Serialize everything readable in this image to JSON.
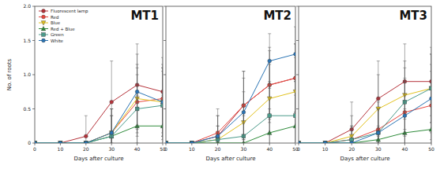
{
  "chart_data": [
    {
      "type": "line",
      "title": "MT1",
      "y_label": "No. of roots",
      "x_label": "Days after culture",
      "x": [
        0,
        10,
        20,
        30,
        40,
        50
      ],
      "xlim": [
        0,
        50
      ],
      "xticks": [
        0,
        10,
        20,
        30,
        40,
        50
      ],
      "ylim": [
        0,
        2
      ],
      "yticks": [
        0,
        {
          "value": 0.5,
          "label": "0.5"
        },
        {
          "value": 1,
          "label": "1.0"
        },
        {
          "value": 1.5,
          "label": "1.5"
        },
        {
          "value": 2,
          "label": "2.0"
        }
      ],
      "legend": "upper left",
      "series": [
        {
          "name": "Fluorescent lamp",
          "color": "#b5323a",
          "marker": "circle",
          "values": [
            0,
            0,
            0.1,
            0.6,
            0.85,
            0.75
          ],
          "errors": [
            0,
            0,
            0.3,
            0.6,
            0.6,
            0.5
          ]
        },
        {
          "name": "Red",
          "color": "#e8473f",
          "marker": "circle",
          "values": [
            0,
            0,
            0,
            0.15,
            0.6,
            0.65
          ],
          "errors": [
            0,
            0,
            0,
            0.35,
            0.5,
            0.5
          ]
        },
        {
          "name": "Blue",
          "color": "#e2c21e",
          "marker": "triangle-down",
          "values": [
            0,
            0,
            0,
            0.15,
            0.65,
            0.6
          ],
          "errors": [
            0,
            0,
            0,
            0.35,
            0.5,
            0.5
          ]
        },
        {
          "name": "Red + Blue",
          "color": "#2e8b3a",
          "marker": "triangle-up",
          "values": [
            0,
            0,
            0,
            0.1,
            0.25,
            0.25
          ],
          "errors": [
            0,
            0,
            0,
            0.3,
            0.45,
            0.45
          ]
        },
        {
          "name": "Green",
          "color": "#4a9a8a",
          "marker": "square",
          "values": [
            0,
            0,
            0,
            0.1,
            0.5,
            0.55
          ],
          "errors": [
            0,
            0,
            0,
            0.3,
            0.5,
            0.5
          ]
        },
        {
          "name": "White",
          "color": "#2a74b4",
          "marker": "circle",
          "values": [
            0,
            0,
            0,
            0.15,
            0.75,
            0.6
          ],
          "errors": [
            0,
            0,
            0,
            0.35,
            0.55,
            0.5
          ]
        }
      ]
    },
    {
      "type": "line",
      "title": "MT2",
      "x_label": "Days after culture",
      "x": [
        0,
        10,
        20,
        30,
        40,
        50
      ],
      "xlim": [
        0,
        50
      ],
      "xticks": [
        0,
        10,
        20,
        30,
        40,
        50
      ],
      "ylim": [
        0,
        2
      ],
      "yticks": [
        0,
        0.5,
        1,
        1.5,
        2
      ],
      "tick_labels": "x",
      "series": [
        {
          "color": "#b5323a",
          "marker": "circle",
          "values": [
            0,
            0,
            0.1,
            0.55,
            0.85,
            0.95
          ],
          "errors": [
            0,
            0,
            0.3,
            0.5,
            0.55,
            0.5
          ]
        },
        {
          "color": "#e8473f",
          "marker": "circle",
          "values": [
            0,
            0,
            0.15,
            0.55,
            0.85,
            0.95
          ],
          "errors": [
            0,
            0,
            0.35,
            0.5,
            0.5,
            0.5
          ]
        },
        {
          "color": "#e2c21e",
          "marker": "triangle-down",
          "values": [
            0,
            0,
            0.05,
            0.3,
            0.65,
            0.75
          ],
          "errors": [
            0,
            0,
            0.2,
            0.45,
            0.5,
            0.5
          ]
        },
        {
          "color": "#2e8b3a",
          "marker": "triangle-up",
          "values": [
            0,
            0,
            0,
            0,
            0.15,
            0.25
          ],
          "errors": [
            0,
            0,
            0,
            0,
            0.35,
            0.45
          ]
        },
        {
          "color": "#4a9a8a",
          "marker": "square",
          "values": [
            0,
            0,
            0.05,
            0.1,
            0.4,
            0.4
          ],
          "errors": [
            0,
            0,
            0.2,
            0.3,
            0.5,
            0.5
          ]
        },
        {
          "color": "#2a74b4",
          "marker": "circle",
          "values": [
            0,
            0,
            0.1,
            0.45,
            1.2,
            1.3
          ],
          "errors": [
            0,
            0,
            0.3,
            0.5,
            0.4,
            0.4
          ]
        }
      ]
    },
    {
      "type": "line",
      "title": "MT3",
      "x_label": "Days after culture",
      "x": [
        0,
        10,
        20,
        30,
        40,
        50
      ],
      "xlim": [
        0,
        50
      ],
      "xticks": [
        0,
        10,
        20,
        30,
        40,
        50
      ],
      "ylim": [
        0,
        2
      ],
      "yticks": [
        0,
        0.5,
        1,
        1.5,
        2
      ],
      "tick_labels": "x",
      "series": [
        {
          "color": "#b5323a",
          "marker": "circle",
          "values": [
            0,
            0,
            0.2,
            0.65,
            0.9,
            0.9
          ],
          "errors": [
            0,
            0,
            0.4,
            0.55,
            0.55,
            0.5
          ]
        },
        {
          "color": "#e8473f",
          "marker": "circle",
          "values": [
            0,
            0,
            0.05,
            0.2,
            0.45,
            0.55
          ],
          "errors": [
            0,
            0,
            0.2,
            0.4,
            0.5,
            0.5
          ]
        },
        {
          "color": "#e2c21e",
          "marker": "triangle-down",
          "values": [
            0,
            0,
            0.1,
            0.5,
            0.7,
            0.8
          ],
          "errors": [
            0,
            0,
            0.3,
            0.5,
            0.5,
            0.5
          ]
        },
        {
          "color": "#2e8b3a",
          "marker": "triangle-up",
          "values": [
            0,
            0,
            0,
            0.05,
            0.15,
            0.2
          ],
          "errors": [
            0,
            0,
            0,
            0.2,
            0.35,
            0.4
          ]
        },
        {
          "color": "#4a9a8a",
          "marker": "square",
          "values": [
            0,
            0,
            0.05,
            0.15,
            0.6,
            0.8
          ],
          "errors": [
            0,
            0,
            0.2,
            0.35,
            0.5,
            0.5
          ]
        },
        {
          "color": "#2a74b4",
          "marker": "circle",
          "values": [
            0,
            0,
            0,
            0.15,
            0.4,
            0.65
          ],
          "errors": [
            0,
            0,
            0,
            0.35,
            0.5,
            0.5
          ]
        }
      ]
    }
  ]
}
